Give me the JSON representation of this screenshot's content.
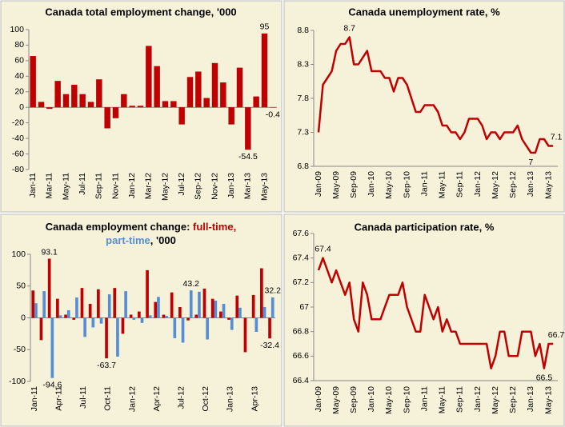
{
  "chart_data": [
    {
      "type": "bar",
      "title": "Canada total employment change, '000",
      "color": "#c00000",
      "categories": [
        "Jan-11",
        null,
        "Mar-11",
        null,
        "May-11",
        null,
        "Jul-11",
        null,
        "Sep-11",
        null,
        "Nov-11",
        null,
        "Jan-12",
        null,
        "Mar-12",
        null,
        "May-12",
        null,
        "Jul-12",
        null,
        "Sep-12",
        null,
        "Nov-12",
        null,
        "Jan-13",
        null,
        "Mar-13",
        null,
        "May-13",
        null
      ],
      "values": [
        66,
        7,
        -2,
        34,
        17,
        29,
        17,
        7,
        36,
        -27,
        -14,
        17,
        2,
        2,
        79,
        53,
        8,
        8,
        -22,
        39,
        46,
        12,
        57,
        32,
        -22,
        51,
        -54.5,
        14,
        95,
        -0.4
      ],
      "value_labels": [
        null,
        null,
        null,
        null,
        null,
        null,
        null,
        null,
        null,
        null,
        null,
        null,
        null,
        null,
        null,
        null,
        null,
        null,
        null,
        null,
        null,
        null,
        null,
        null,
        null,
        null,
        "-54.5",
        null,
        "95",
        "-0.4"
      ],
      "ylim": [
        -80,
        100
      ],
      "yticks": [
        -80,
        -60,
        -40,
        -20,
        0,
        20,
        40,
        60,
        80,
        100
      ]
    },
    {
      "type": "line",
      "title": "Canada unemployment rate, %",
      "color": "#c00000",
      "categories": [
        "Jan-09",
        null,
        null,
        null,
        "May-09",
        null,
        null,
        null,
        "Sep-09",
        null,
        null,
        null,
        "Jan-10",
        null,
        null,
        null,
        "May-10",
        null,
        null,
        null,
        "Sep-10",
        null,
        null,
        null,
        "Jan-11",
        null,
        null,
        null,
        "May-11",
        null,
        null,
        null,
        "Sep-11",
        null,
        null,
        null,
        "Jan-12",
        null,
        null,
        null,
        "May-12",
        null,
        null,
        null,
        "Sep-12",
        null,
        null,
        null,
        "Jan-13",
        null,
        null,
        null,
        "May-13",
        null
      ],
      "values": [
        7.3,
        8.0,
        8.1,
        8.2,
        8.5,
        8.6,
        8.6,
        8.7,
        8.3,
        8.3,
        8.4,
        8.5,
        8.2,
        8.2,
        8.2,
        8.1,
        8.1,
        7.9,
        8.1,
        8.1,
        8.0,
        7.8,
        7.6,
        7.6,
        7.7,
        7.7,
        7.7,
        7.6,
        7.4,
        7.4,
        7.3,
        7.3,
        7.2,
        7.3,
        7.5,
        7.5,
        7.5,
        7.4,
        7.2,
        7.3,
        7.3,
        7.2,
        7.3,
        7.3,
        7.3,
        7.4,
        7.2,
        7.1,
        7.0,
        7.0,
        7.2,
        7.2,
        7.1,
        7.1
      ],
      "value_labels": [
        null,
        null,
        null,
        null,
        null,
        null,
        null,
        "8.7",
        null,
        null,
        null,
        null,
        null,
        null,
        null,
        null,
        null,
        null,
        null,
        null,
        null,
        null,
        null,
        null,
        null,
        null,
        null,
        null,
        null,
        null,
        null,
        null,
        null,
        null,
        null,
        null,
        null,
        null,
        null,
        null,
        null,
        null,
        null,
        null,
        null,
        null,
        null,
        null,
        "7",
        null,
        null,
        null,
        null,
        "7.1"
      ],
      "ylim": [
        6.8,
        8.8
      ],
      "yticks": [
        6.8,
        7.3,
        7.8,
        8.3,
        8.8
      ]
    },
    {
      "type": "bar",
      "title": [
        "Canada employment change: ",
        "full-time,",
        "part-time",
        ", '000"
      ],
      "categories": [
        "Jan-11",
        null,
        null,
        "Apr-11",
        null,
        null,
        "Jul-11",
        null,
        null,
        "Oct-11",
        null,
        null,
        "Jan-12",
        null,
        null,
        "Apr-12",
        null,
        null,
        "Jul-12",
        null,
        null,
        "Oct-12",
        null,
        null,
        "Jan-13",
        null,
        null,
        "Apr-13",
        null,
        null
      ],
      "series": [
        {
          "name": "full-time",
          "color": "#c00000",
          "values": [
            43,
            -35,
            93.1,
            30,
            5,
            -3,
            47,
            22,
            45,
            -63.7,
            47,
            -25,
            5,
            10,
            75,
            25,
            5,
            40,
            17,
            -4,
            5,
            46,
            30,
            10,
            -3,
            35,
            -54,
            36,
            78,
            -32.4
          ],
          "value_labels": [
            null,
            null,
            "93.1",
            null,
            null,
            null,
            null,
            null,
            null,
            "-63.7",
            null,
            null,
            null,
            null,
            null,
            null,
            null,
            null,
            null,
            null,
            null,
            null,
            null,
            null,
            null,
            null,
            null,
            null,
            null,
            "-32.4"
          ]
        },
        {
          "name": "part-time",
          "color": "#558ed5",
          "values": [
            23,
            42,
            -94.6,
            4,
            12,
            32,
            -30,
            -15,
            -9,
            37,
            -61,
            42,
            -3,
            -8,
            4,
            33,
            3,
            -32,
            -39,
            43.2,
            41,
            -34,
            27,
            22,
            -19,
            16,
            -0.5,
            -22,
            17,
            32.2
          ],
          "value_labels": [
            null,
            null,
            "-94.6",
            null,
            null,
            null,
            null,
            null,
            null,
            null,
            null,
            null,
            null,
            null,
            null,
            null,
            null,
            null,
            null,
            "43.2",
            null,
            null,
            null,
            null,
            null,
            null,
            null,
            null,
            null,
            "32.2"
          ]
        }
      ],
      "ylim": [
        -100,
        100
      ],
      "yticks": [
        -100,
        -50,
        0,
        50,
        100
      ]
    },
    {
      "type": "line",
      "title": "Canada participation rate, %",
      "color": "#c00000",
      "categories": [
        "Jan-09",
        null,
        null,
        null,
        "May-09",
        null,
        null,
        null,
        "Sep-09",
        null,
        null,
        null,
        "Jan-10",
        null,
        null,
        null,
        "May-10",
        null,
        null,
        null,
        "Sep-10",
        null,
        null,
        null,
        "Jan-11",
        null,
        null,
        null,
        "May-11",
        null,
        null,
        null,
        "Sep-11",
        null,
        null,
        null,
        "Jan-12",
        null,
        null,
        null,
        "May-12",
        null,
        null,
        null,
        "Sep-12",
        null,
        null,
        null,
        "Jan-13",
        null,
        null,
        null,
        "May-13",
        null
      ],
      "values": [
        67.3,
        67.4,
        67.3,
        67.2,
        67.3,
        67.2,
        67.1,
        67.2,
        66.9,
        66.8,
        67.2,
        67.1,
        66.9,
        66.9,
        66.9,
        67.0,
        67.1,
        67.1,
        67.1,
        67.2,
        67.0,
        66.9,
        66.8,
        66.8,
        67.1,
        67.0,
        66.9,
        67.0,
        66.8,
        66.9,
        66.8,
        66.8,
        66.7,
        66.7,
        66.7,
        66.7,
        66.7,
        66.7,
        66.7,
        66.5,
        66.6,
        66.8,
        66.8,
        66.6,
        66.6,
        66.6,
        66.8,
        66.8,
        66.8,
        66.6,
        66.7,
        66.5,
        66.7,
        66.7
      ],
      "value_labels": [
        null,
        "67.4",
        null,
        null,
        null,
        null,
        null,
        null,
        null,
        null,
        null,
        null,
        null,
        null,
        null,
        null,
        null,
        null,
        null,
        null,
        null,
        null,
        null,
        null,
        null,
        null,
        null,
        null,
        null,
        null,
        null,
        null,
        null,
        null,
        null,
        null,
        null,
        null,
        null,
        null,
        null,
        null,
        null,
        null,
        null,
        null,
        null,
        null,
        null,
        null,
        null,
        "66.5",
        null,
        "66.7"
      ],
      "ylim": [
        66.4,
        67.6
      ],
      "yticks": [
        66.4,
        66.6,
        66.8,
        67,
        67.2,
        67.4,
        67.6
      ]
    }
  ]
}
